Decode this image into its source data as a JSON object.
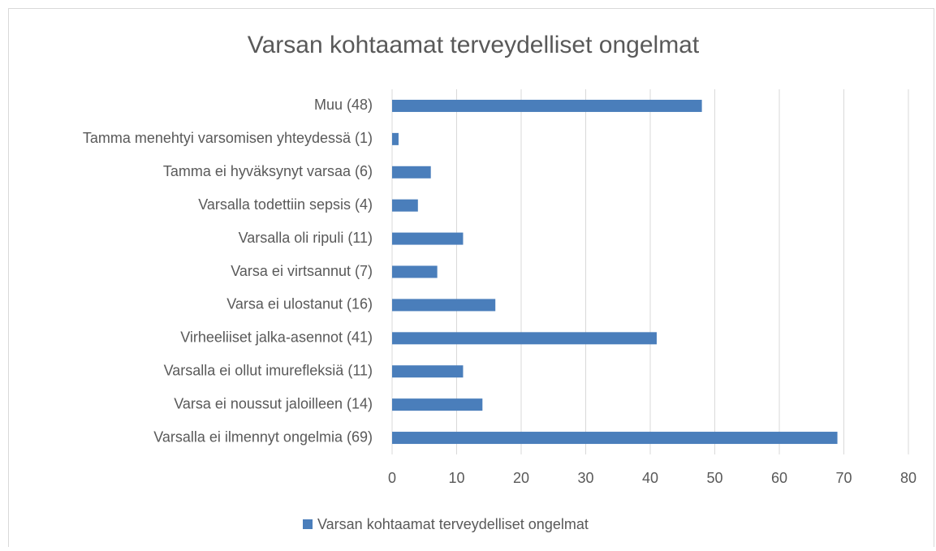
{
  "chart_data": {
    "type": "barh",
    "title": "Varsan kohtaamat terveydelliset ongelmat",
    "categories": [
      "Muu (48)",
      "Tamma menehtyi varsomisen yhteydessä (1)",
      "Tamma ei hyväksynyt varsaa (6)",
      "Varsalla todettiin sepsis (4)",
      "Varsalla oli ripuli (11)",
      "Varsa ei virtsannut (7)",
      "Varsa ei ulostanut (16)",
      "Virheeliiset jalka-asennot (41)",
      "Varsalla ei ollut imurefleksiä (11)",
      "Varsa ei noussut jaloilleen (14)",
      "Varsalla ei ilmennyt ongelmia (69)"
    ],
    "series": [
      {
        "name": "Varsan kohtaamat terveydelliset ongelmat",
        "color": "#4a7ebb",
        "values": [
          48,
          1,
          6,
          4,
          11,
          7,
          16,
          41,
          11,
          14,
          69
        ]
      }
    ],
    "xlim": [
      0,
      80
    ],
    "xticks": [
      0,
      10,
      20,
      30,
      40,
      50,
      60,
      70,
      80
    ],
    "grid": true,
    "legend": "bottom"
  }
}
